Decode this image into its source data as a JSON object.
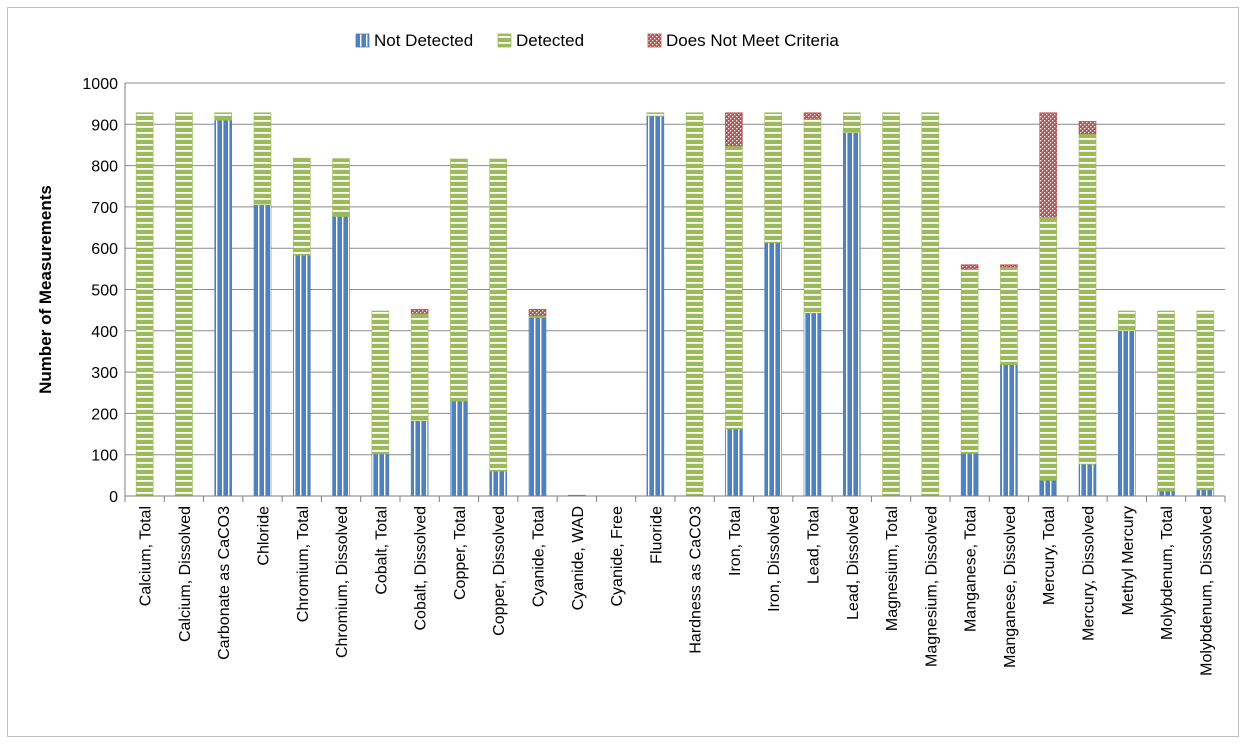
{
  "chart_data": {
    "type": "bar",
    "stacked": true,
    "title": "",
    "xlabel": "",
    "ylabel": "Number of Measurements",
    "ylim": [
      0,
      1000
    ],
    "yticks": [
      0,
      100,
      200,
      300,
      400,
      500,
      600,
      700,
      800,
      900,
      1000
    ],
    "grid": true,
    "legend_position": "top",
    "categories": [
      "Calcium, Total",
      "Calcium, Dissolved",
      "Carbonate as CaCO3",
      "Chloride",
      "Chromium, Total",
      "Chromium, Dissolved",
      "Cobalt, Total",
      "Cobalt, Dissolved",
      "Copper, Total",
      "Copper, Dissolved",
      "Cyanide, Total",
      "Cyanide, WAD",
      "Cyanide, Free",
      "Fluoride",
      "Hardness as CaCO3",
      "Iron, Total",
      "Iron, Dissolved",
      "Lead, Total",
      "Lead, Dissolved",
      "Magnesium, Total",
      "Magnesium, Dissolved",
      "Manganese, Total",
      "Manganese, Dissolved",
      "Mercury, Total",
      "Mercury, Dissolved",
      "Methyl Mercury",
      "Molybdenum, Total",
      "Molybdenum, Dissolved"
    ],
    "series": [
      {
        "name": "Not Detected",
        "color": "#4f81bd",
        "values": [
          0,
          0,
          910,
          705,
          583,
          677,
          102,
          182,
          230,
          60,
          432,
          2,
          0,
          920,
          0,
          162,
          613,
          443,
          880,
          0,
          0,
          103,
          318,
          38,
          77,
          400,
          12,
          15
        ]
      },
      {
        "name": "Detected",
        "color": "#9bbb59",
        "values": [
          928,
          928,
          18,
          223,
          235,
          140,
          346,
          260,
          586,
          756,
          5,
          0,
          0,
          8,
          928,
          686,
          315,
          470,
          48,
          928,
          928,
          447,
          237,
          637,
          800,
          48,
          436,
          433
        ]
      },
      {
        "name": "Does Not Meet Criteria",
        "color": "#c0504d",
        "values": [
          0,
          0,
          0,
          0,
          0,
          0,
          0,
          10,
          0,
          0,
          15,
          0,
          0,
          0,
          0,
          80,
          0,
          15,
          0,
          0,
          0,
          10,
          5,
          253,
          30,
          0,
          0,
          0
        ]
      }
    ]
  }
}
